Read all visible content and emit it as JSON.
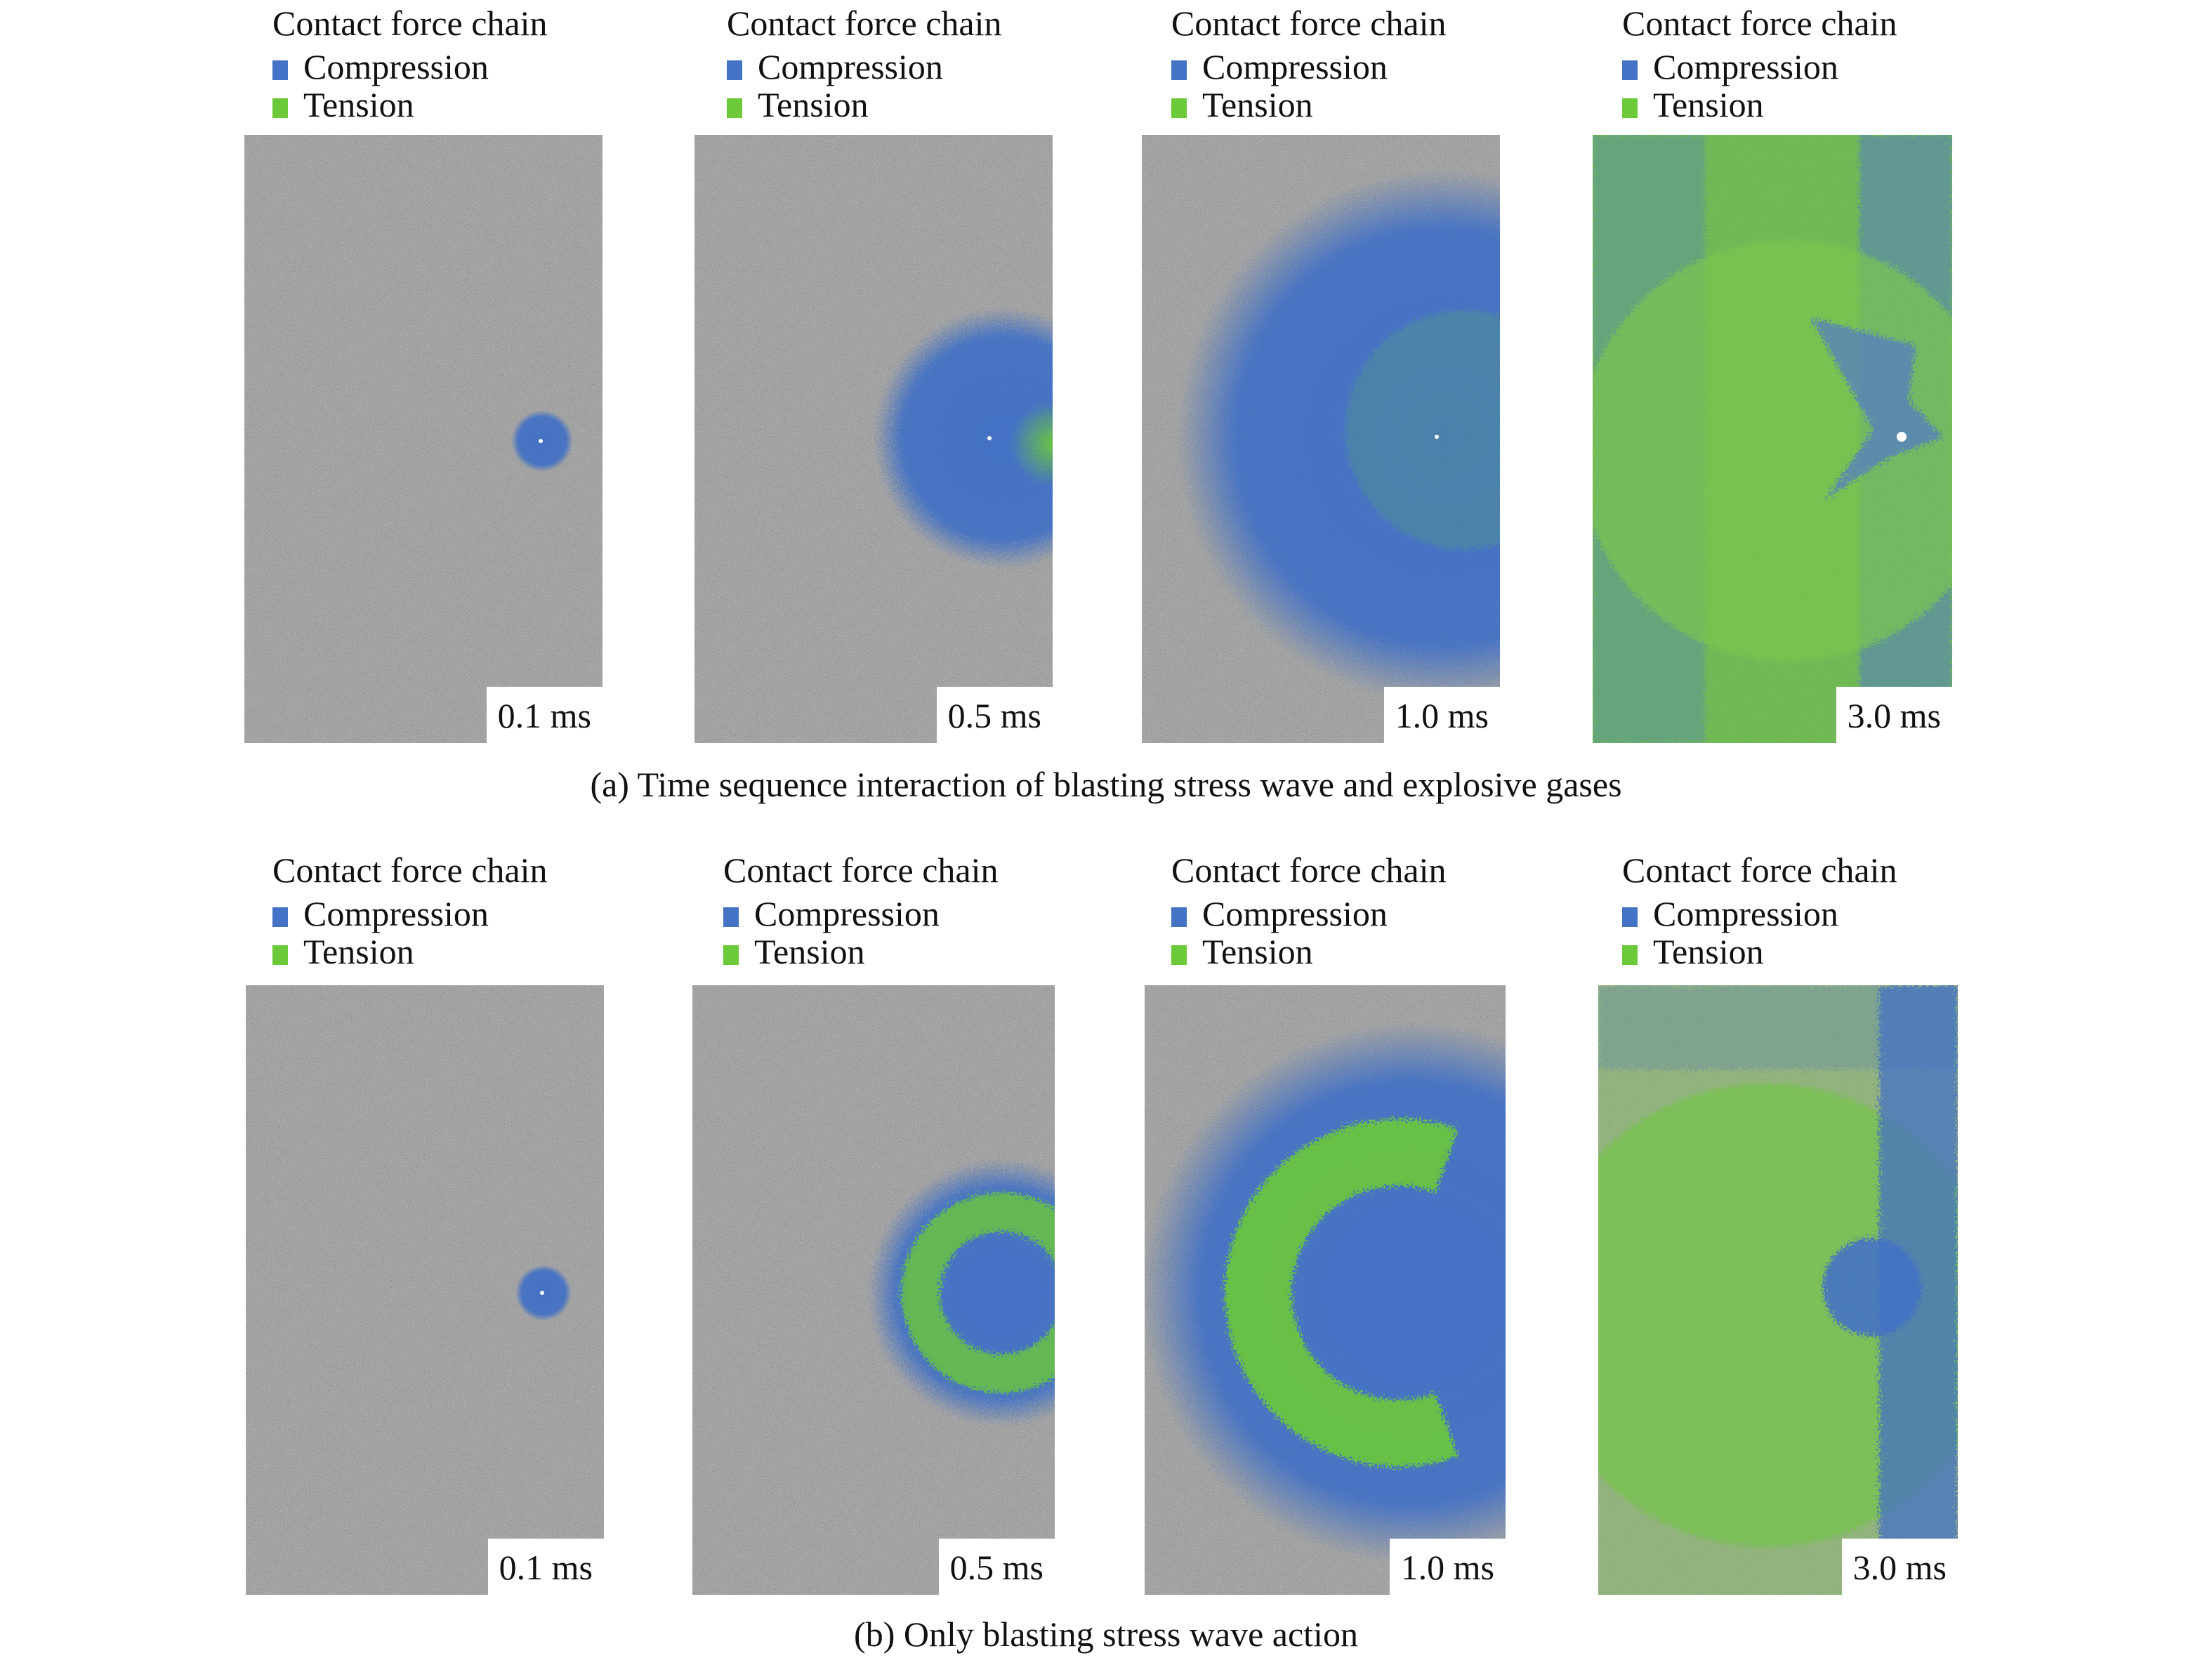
{
  "colors": {
    "compression": "#4472c4",
    "tension": "#6cc93a",
    "rock": "#7d7d7d"
  },
  "figure": {
    "rows": [
      {
        "caption": "(a) Time sequence interaction of blasting stress wave and explosive gases",
        "panels": [
          {
            "legend_title": "Contact force chain",
            "compression_label": "Compression",
            "tension_label": "Tension",
            "time": "0.1 ms"
          },
          {
            "legend_title": "Contact force chain",
            "compression_label": "Compression",
            "tension_label": "Tension",
            "time": "0.5 ms"
          },
          {
            "legend_title": "Contact force chain",
            "compression_label": "Compression",
            "tension_label": "Tension",
            "time": "1.0 ms"
          },
          {
            "legend_title": "Contact force chain",
            "compression_label": "Compression",
            "tension_label": "Tension",
            "time": "3.0 ms"
          }
        ]
      },
      {
        "caption": "(b) Only blasting stress wave action",
        "panels": [
          {
            "legend_title": "Contact force chain",
            "compression_label": "Compression",
            "tension_label": "Tension",
            "time": "0.1 ms"
          },
          {
            "legend_title": "Contact force chain",
            "compression_label": "Compression",
            "tension_label": "Tension",
            "time": "0.5 ms"
          },
          {
            "legend_title": "Contact force chain",
            "compression_label": "Compression",
            "tension_label": "Tension",
            "time": "1.0 ms"
          },
          {
            "legend_title": "Contact force chain",
            "compression_label": "Compression",
            "tension_label": "Tension",
            "time": "3.0 ms"
          }
        ]
      }
    ]
  }
}
